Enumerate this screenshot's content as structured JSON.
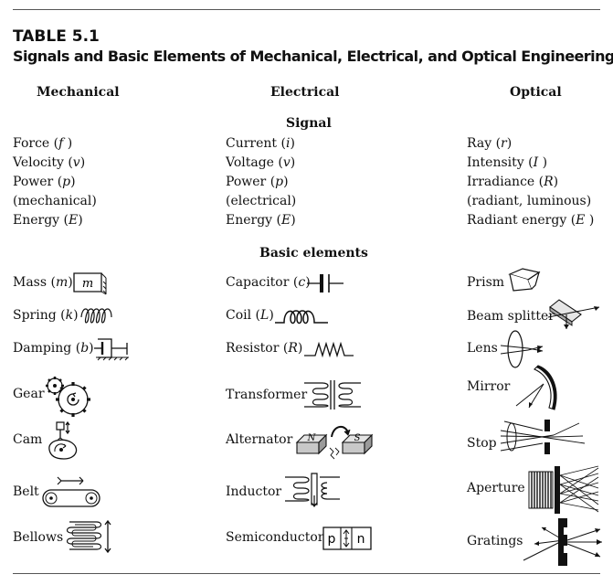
{
  "table": {
    "number": "TABLE 5.1",
    "title": "Signals and Basic Elements of Mechanical, Electrical, and Optical Engineering"
  },
  "columns": [
    "Mechanical",
    "Electrical",
    "Optical"
  ],
  "sections": {
    "signal": "Signal",
    "elements": "Basic elements"
  },
  "signals": {
    "mechanical": [
      "Force (f )",
      "Velocity (v)",
      "Power (p)",
      "(mechanical)",
      "Energy (E)"
    ],
    "electrical": [
      "Current (i)",
      "Voltage (v)",
      "Power (p)",
      "(electrical)",
      "Energy (E)"
    ],
    "optical": [
      "Ray (r)",
      "Intensity (I )",
      "Irradiance (R)",
      "(radiant, luminous)",
      "Radiant energy (E )"
    ]
  },
  "elements": {
    "mechanical": [
      "Mass (m)",
      "Spring (k)",
      "Damping (b)",
      "Gear",
      "Cam",
      "Belt",
      "Bellows"
    ],
    "electrical": [
      "Capacitor (c)",
      "Coil (L)",
      "Resistor (R)",
      "Transformer",
      "Alternator",
      "Inductor",
      "Semiconductor"
    ],
    "optical": [
      "Prism",
      "Beam splitter",
      "Lens",
      "Mirror",
      "Stop",
      "Aperture",
      "Gratings"
    ]
  },
  "icon_text": {
    "mass": "m",
    "alt_n": "N",
    "alt_s": "S",
    "semi_p": "p",
    "semi_n": "n"
  },
  "icons": [
    "mass-icon",
    "spring-icon",
    "damper-icon",
    "gear-icon",
    "cam-icon",
    "belt-icon",
    "bellows-icon",
    "capacitor-icon",
    "coil-icon",
    "resistor-icon",
    "transformer-icon",
    "alternator-icon",
    "inductor-icon",
    "semiconductor-icon",
    "prism-icon",
    "beam-splitter-icon",
    "lens-icon",
    "mirror-icon",
    "stop-icon",
    "aperture-icon",
    "gratings-icon"
  ]
}
